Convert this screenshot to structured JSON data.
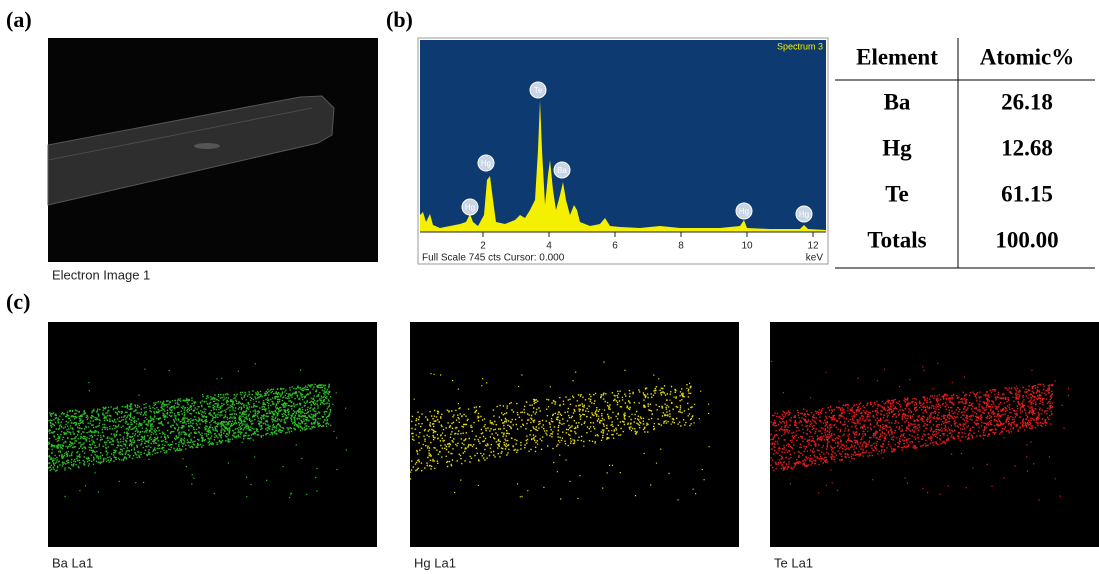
{
  "panels": {
    "a": "(a)",
    "b": "(b)",
    "c": "(c)"
  },
  "electron_image": {
    "caption": "Electron Image 1"
  },
  "spectrum": {
    "title": "Spectrum 3",
    "x_ticks": [
      2,
      4,
      6,
      8,
      10,
      12
    ],
    "footer": "Full Scale 745 cts Cursor: 0.000",
    "unit": "keV",
    "peak_labels": [
      "Hg",
      "Hg",
      "Te",
      "Ba",
      "Hg",
      "Hg"
    ]
  },
  "table": {
    "header": [
      "Element",
      "Atomic%"
    ],
    "rows": [
      [
        "Ba",
        "26.18"
      ],
      [
        "Hg",
        "12.68"
      ],
      [
        "Te",
        "61.15"
      ],
      [
        "Totals",
        "100.00"
      ]
    ]
  },
  "maps": [
    {
      "caption": "Ba La1",
      "color": "#2fc02a"
    },
    {
      "caption": "Hg La1",
      "color": "#e6dc10"
    },
    {
      "caption": "Te La1",
      "color": "#e41c1c"
    }
  ]
}
